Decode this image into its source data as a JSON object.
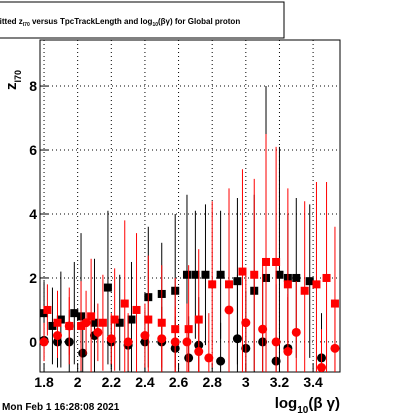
{
  "chart_data": {
    "type": "scatter",
    "title": {
      "a": "fitted  z",
      "b": "I70",
      "c": " versus TpcTrackLength and log",
      "d": "10",
      "e": "(βγ) for Global proton"
    },
    "x_label": {
      "a": "log",
      "b": "10",
      "c": "(β γ)"
    },
    "y_label": {
      "a": "z",
      "b": "I70"
    },
    "footer": "Mon Feb  1 16:28:08 2021",
    "xlim": [
      1.776,
      3.56
    ],
    "ylim": [
      -0.94,
      9.44
    ],
    "xticks": [
      1.8,
      2,
      2.2,
      2.4,
      2.6,
      2.8,
      3,
      3.2,
      3.4
    ],
    "yticks": [
      0,
      2,
      4,
      6,
      8
    ],
    "grid": true,
    "series": [
      {
        "marker": "square",
        "color": "#000000",
        "x": [
          1.8,
          1.85,
          1.9,
          1.98,
          2.02,
          2.1,
          2.18,
          2.25,
          2.32,
          2.42,
          2.5,
          2.58,
          2.65,
          2.7,
          2.76,
          2.85,
          2.95,
          3.05,
          3.12,
          3.2,
          3.25,
          3.3,
          3.38
        ],
        "values": [
          0.9,
          0.5,
          0.7,
          0.9,
          0.8,
          0.6,
          1.7,
          0.6,
          0.7,
          1.4,
          1.5,
          1.6,
          2.1,
          2.1,
          2.1,
          2.1,
          1.9,
          1.6,
          2.0,
          2.1,
          2.0,
          2.0,
          1.9
        ],
        "errors": [
          1.0,
          1.2,
          1.5,
          1.6,
          2.6,
          2.0,
          2.4,
          1.5,
          1.8,
          2.2,
          1.6,
          2.4,
          2.5,
          2.0,
          2.2,
          2.0,
          2.6,
          3.0,
          6.0,
          4.0,
          2.0,
          2.5,
          2.4
        ]
      },
      {
        "marker": "circle",
        "color": "#000000",
        "x": [
          1.8,
          1.88,
          1.95,
          2.03,
          2.1,
          2.2,
          2.3,
          2.4,
          2.5,
          2.58,
          2.66,
          2.72,
          2.85,
          2.95,
          3.0,
          3.1,
          3.18,
          3.25,
          3.45
        ],
        "values": [
          0.05,
          0.0,
          0.0,
          -0.35,
          0.2,
          0.0,
          -0.1,
          0.0,
          0.0,
          -0.2,
          -0.5,
          -0.1,
          -0.6,
          0.1,
          -0.2,
          0.0,
          -0.6,
          -0.2,
          -0.5
        ],
        "errors": [
          0.6,
          0.8,
          1.0,
          1.2,
          1.0,
          0.8,
          0.9,
          1.0,
          1.1,
          1.0,
          1.3,
          1.5,
          1.2,
          2.0,
          1.8,
          2.0,
          2.4,
          1.6,
          1.4
        ]
      },
      {
        "marker": "square",
        "color": "#ff0000",
        "x": [
          1.82,
          1.88,
          1.95,
          2.02,
          2.08,
          2.15,
          2.22,
          2.28,
          2.35,
          2.42,
          2.5,
          2.58,
          2.66,
          2.72,
          2.8,
          2.9,
          2.98,
          3.05,
          3.12,
          3.18,
          3.25,
          3.35,
          3.42,
          3.48,
          3.53
        ],
        "values": [
          1.0,
          0.6,
          0.5,
          0.5,
          0.8,
          0.6,
          0.7,
          1.2,
          1.0,
          0.7,
          0.6,
          0.4,
          0.4,
          0.7,
          1.8,
          1.8,
          2.2,
          2.1,
          2.5,
          2.5,
          1.8,
          1.6,
          1.8,
          2.0,
          1.2
        ],
        "errors": [
          0.8,
          1.0,
          1.2,
          1.4,
          1.8,
          1.5,
          1.6,
          2.6,
          2.4,
          2.0,
          1.8,
          1.6,
          2.0,
          2.2,
          2.6,
          3.0,
          3.2,
          3.0,
          4.0,
          3.6,
          3.0,
          2.8,
          3.2,
          3.0,
          2.4
        ]
      },
      {
        "marker": "circle",
        "color": "#ff0000",
        "x": [
          1.8,
          1.88,
          1.95,
          2.05,
          2.12,
          2.2,
          2.3,
          2.4,
          2.5,
          2.58,
          2.65,
          2.72,
          2.78,
          2.9,
          3.0,
          3.1,
          3.18,
          3.25,
          3.3,
          3.45,
          3.53
        ],
        "values": [
          0.0,
          0.2,
          0.5,
          0.6,
          0.3,
          0.1,
          0.0,
          0.2,
          0.1,
          0.0,
          0.0,
          -0.3,
          -0.5,
          1.0,
          0.6,
          0.4,
          0.0,
          -0.3,
          0.3,
          -0.8,
          -0.2
        ],
        "errors": [
          0.6,
          0.7,
          0.9,
          1.0,
          0.9,
          0.8,
          0.9,
          1.0,
          0.9,
          1.1,
          1.2,
          1.3,
          1.4,
          1.8,
          1.6,
          2.0,
          2.2,
          1.8,
          1.6,
          1.2,
          1.4
        ]
      }
    ]
  }
}
